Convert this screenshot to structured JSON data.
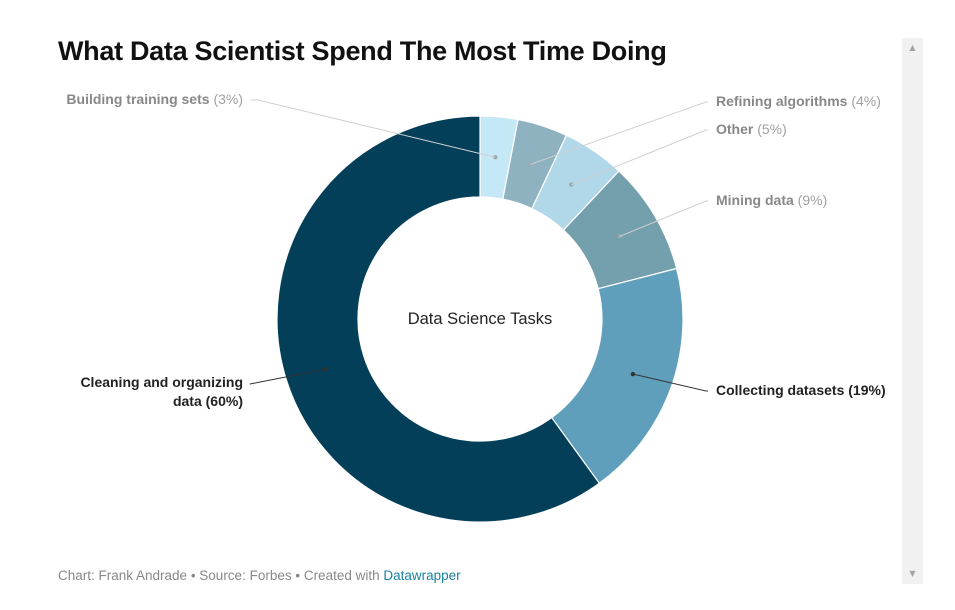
{
  "chart_data": {
    "type": "pie",
    "variant": "donut",
    "title": "What Data Scientist Spend The Most Time Doing",
    "center_label": "Data Science Tasks",
    "slices": [
      {
        "label": "Building training sets",
        "value": 3,
        "color": "#c5e8f7",
        "label_emphasis": false
      },
      {
        "label": "Refining algorithms",
        "value": 4,
        "color": "#8fb2c0",
        "label_emphasis": false
      },
      {
        "label": "Other",
        "value": 5,
        "color": "#b0d8e8",
        "label_emphasis": false
      },
      {
        "label": "Mining data",
        "value": 9,
        "color": "#74a0ad",
        "label_emphasis": false
      },
      {
        "label": "Collecting datasets",
        "value": 19,
        "color": "#5f9fbc",
        "label_emphasis": true
      },
      {
        "label": "Cleaning and organizing data",
        "value": 60,
        "color": "#033f58",
        "label_emphasis": true
      }
    ]
  },
  "footer": {
    "credit": "Chart: Frank Andrade • Source: Forbes • Created with ",
    "link": "Datawrapper"
  },
  "scrollbar": {
    "up_icon": "▲",
    "down_icon": "▼"
  }
}
